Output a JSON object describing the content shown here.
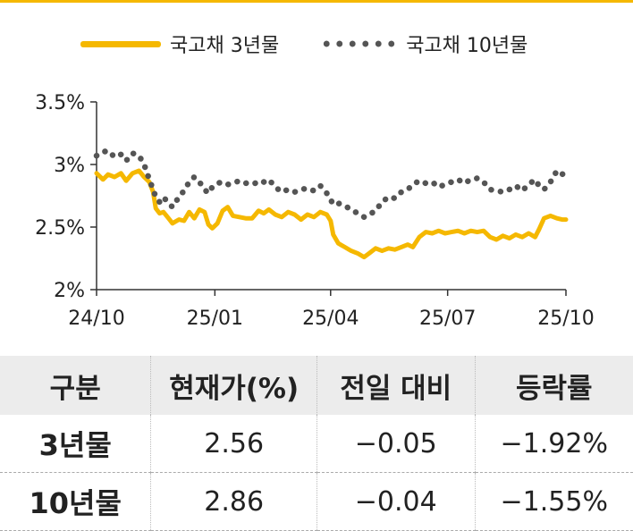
{
  "chart_data": {
    "type": "line",
    "x_ticks": [
      "24/10",
      "25/01",
      "25/04",
      "25/07",
      "25/10"
    ],
    "x_range": [
      "2024-10-01",
      "2025-10-01"
    ],
    "y_ticks": [
      "2%",
      "2.5%",
      "3%",
      "3.5%"
    ],
    "ylim": [
      2.0,
      3.5
    ],
    "legend_position": "top",
    "series": [
      {
        "name": "국고채 3년물",
        "style": "solid",
        "color": "#f5b800",
        "points": [
          [
            "2024-10-01",
            2.93
          ],
          [
            "2024-10-06",
            2.88
          ],
          [
            "2024-10-10",
            2.92
          ],
          [
            "2024-10-15",
            2.9
          ],
          [
            "2024-10-20",
            2.93
          ],
          [
            "2024-10-24",
            2.87
          ],
          [
            "2024-10-29",
            2.93
          ],
          [
            "2024-11-03",
            2.95
          ],
          [
            "2024-11-07",
            2.9
          ],
          [
            "2024-11-11",
            2.86
          ],
          [
            "2024-11-14",
            2.78
          ],
          [
            "2024-11-16",
            2.65
          ],
          [
            "2024-11-19",
            2.61
          ],
          [
            "2024-11-22",
            2.62
          ],
          [
            "2024-11-26",
            2.57
          ],
          [
            "2024-11-29",
            2.53
          ],
          [
            "2024-12-04",
            2.56
          ],
          [
            "2024-12-08",
            2.55
          ],
          [
            "2024-12-12",
            2.62
          ],
          [
            "2024-12-16",
            2.57
          ],
          [
            "2024-12-20",
            2.64
          ],
          [
            "2024-12-24",
            2.62
          ],
          [
            "2024-12-27",
            2.52
          ],
          [
            "2024-12-30",
            2.49
          ],
          [
            "2025-01-03",
            2.53
          ],
          [
            "2025-01-07",
            2.63
          ],
          [
            "2025-01-11",
            2.66
          ],
          [
            "2025-01-15",
            2.59
          ],
          [
            "2025-01-20",
            2.58
          ],
          [
            "2025-01-25",
            2.57
          ],
          [
            "2025-01-30",
            2.57
          ],
          [
            "2025-02-04",
            2.63
          ],
          [
            "2025-02-08",
            2.61
          ],
          [
            "2025-02-12",
            2.64
          ],
          [
            "2025-02-17",
            2.6
          ],
          [
            "2025-02-22",
            2.58
          ],
          [
            "2025-02-27",
            2.62
          ],
          [
            "2025-03-04",
            2.6
          ],
          [
            "2025-03-09",
            2.56
          ],
          [
            "2025-03-14",
            2.6
          ],
          [
            "2025-03-19",
            2.58
          ],
          [
            "2025-03-24",
            2.62
          ],
          [
            "2025-03-29",
            2.6
          ],
          [
            "2025-04-01",
            2.55
          ],
          [
            "2025-04-03",
            2.44
          ],
          [
            "2025-04-07",
            2.37
          ],
          [
            "2025-04-12",
            2.34
          ],
          [
            "2025-04-17",
            2.31
          ],
          [
            "2025-04-22",
            2.29
          ],
          [
            "2025-04-27",
            2.26
          ],
          [
            "2025-05-01",
            2.29
          ],
          [
            "2025-05-06",
            2.33
          ],
          [
            "2025-05-11",
            2.31
          ],
          [
            "2025-05-16",
            2.33
          ],
          [
            "2025-05-21",
            2.32
          ],
          [
            "2025-05-26",
            2.34
          ],
          [
            "2025-05-31",
            2.36
          ],
          [
            "2025-06-04",
            2.34
          ],
          [
            "2025-06-09",
            2.42
          ],
          [
            "2025-06-14",
            2.46
          ],
          [
            "2025-06-19",
            2.45
          ],
          [
            "2025-06-24",
            2.47
          ],
          [
            "2025-06-29",
            2.45
          ],
          [
            "2025-07-04",
            2.46
          ],
          [
            "2025-07-09",
            2.47
          ],
          [
            "2025-07-14",
            2.45
          ],
          [
            "2025-07-19",
            2.47
          ],
          [
            "2025-07-24",
            2.46
          ],
          [
            "2025-07-29",
            2.47
          ],
          [
            "2025-08-03",
            2.42
          ],
          [
            "2025-08-08",
            2.4
          ],
          [
            "2025-08-13",
            2.43
          ],
          [
            "2025-08-18",
            2.41
          ],
          [
            "2025-08-23",
            2.44
          ],
          [
            "2025-08-28",
            2.42
          ],
          [
            "2025-09-02",
            2.45
          ],
          [
            "2025-09-07",
            2.42
          ],
          [
            "2025-09-10",
            2.48
          ],
          [
            "2025-09-14",
            2.57
          ],
          [
            "2025-09-19",
            2.59
          ],
          [
            "2025-09-24",
            2.57
          ],
          [
            "2025-09-28",
            2.56
          ],
          [
            "2025-10-01",
            2.56
          ]
        ]
      },
      {
        "name": "국고채 10년물",
        "style": "dotted",
        "color": "#555555",
        "points": [
          [
            "2024-10-01",
            3.07
          ],
          [
            "2024-10-06",
            3.1
          ],
          [
            "2024-10-10",
            3.11
          ],
          [
            "2024-10-15",
            3.06
          ],
          [
            "2024-10-20",
            3.08
          ],
          [
            "2024-10-24",
            3.03
          ],
          [
            "2024-10-29",
            3.09
          ],
          [
            "2024-11-03",
            3.07
          ],
          [
            "2024-11-07",
            3.0
          ],
          [
            "2024-11-11",
            2.88
          ],
          [
            "2024-11-14",
            2.8
          ],
          [
            "2024-11-16",
            2.74
          ],
          [
            "2024-11-19",
            2.7
          ],
          [
            "2024-11-22",
            2.74
          ],
          [
            "2024-11-26",
            2.69
          ],
          [
            "2024-11-29",
            2.66
          ],
          [
            "2024-12-04",
            2.74
          ],
          [
            "2024-12-08",
            2.79
          ],
          [
            "2024-12-12",
            2.86
          ],
          [
            "2024-12-16",
            2.9
          ],
          [
            "2024-12-20",
            2.86
          ],
          [
            "2024-12-24",
            2.8
          ],
          [
            "2024-12-27",
            2.77
          ],
          [
            "2024-12-30",
            2.82
          ],
          [
            "2025-01-03",
            2.85
          ],
          [
            "2025-01-07",
            2.86
          ],
          [
            "2025-01-11",
            2.84
          ],
          [
            "2025-01-15",
            2.85
          ],
          [
            "2025-01-20",
            2.87
          ],
          [
            "2025-01-25",
            2.85
          ],
          [
            "2025-01-30",
            2.86
          ],
          [
            "2025-02-04",
            2.84
          ],
          [
            "2025-02-08",
            2.86
          ],
          [
            "2025-02-12",
            2.88
          ],
          [
            "2025-02-17",
            2.82
          ],
          [
            "2025-02-22",
            2.78
          ],
          [
            "2025-02-27",
            2.8
          ],
          [
            "2025-03-04",
            2.78
          ],
          [
            "2025-03-09",
            2.8
          ],
          [
            "2025-03-14",
            2.81
          ],
          [
            "2025-03-19",
            2.79
          ],
          [
            "2025-03-24",
            2.83
          ],
          [
            "2025-03-29",
            2.77
          ],
          [
            "2025-04-01",
            2.72
          ],
          [
            "2025-04-03",
            2.68
          ],
          [
            "2025-04-07",
            2.69
          ],
          [
            "2025-04-12",
            2.67
          ],
          [
            "2025-04-17",
            2.64
          ],
          [
            "2025-04-22",
            2.61
          ],
          [
            "2025-04-27",
            2.58
          ],
          [
            "2025-05-01",
            2.6
          ],
          [
            "2025-05-06",
            2.63
          ],
          [
            "2025-05-11",
            2.7
          ],
          [
            "2025-05-16",
            2.74
          ],
          [
            "2025-05-21",
            2.73
          ],
          [
            "2025-05-26",
            2.78
          ],
          [
            "2025-05-31",
            2.8
          ],
          [
            "2025-06-04",
            2.84
          ],
          [
            "2025-06-09",
            2.87
          ],
          [
            "2025-06-14",
            2.85
          ],
          [
            "2025-06-19",
            2.86
          ],
          [
            "2025-06-24",
            2.82
          ],
          [
            "2025-06-29",
            2.84
          ],
          [
            "2025-07-04",
            2.86
          ],
          [
            "2025-07-09",
            2.88
          ],
          [
            "2025-07-14",
            2.85
          ],
          [
            "2025-07-19",
            2.88
          ],
          [
            "2025-07-24",
            2.89
          ],
          [
            "2025-07-29",
            2.86
          ],
          [
            "2025-08-03",
            2.8
          ],
          [
            "2025-08-08",
            2.79
          ],
          [
            "2025-08-13",
            2.78
          ],
          [
            "2025-08-18",
            2.8
          ],
          [
            "2025-08-23",
            2.83
          ],
          [
            "2025-08-28",
            2.79
          ],
          [
            "2025-09-02",
            2.84
          ],
          [
            "2025-09-07",
            2.88
          ],
          [
            "2025-09-10",
            2.83
          ],
          [
            "2025-09-14",
            2.8
          ],
          [
            "2025-09-19",
            2.86
          ],
          [
            "2025-09-24",
            2.95
          ],
          [
            "2025-09-28",
            2.93
          ],
          [
            "2025-10-01",
            2.86
          ]
        ]
      }
    ]
  },
  "table": {
    "headers": [
      "구분",
      "현재가(%)",
      "전일 대비",
      "등락률"
    ],
    "rows": [
      [
        "3년물",
        "2.56",
        "−0.05",
        "−1.92%"
      ],
      [
        "10년물",
        "2.86",
        "−0.04",
        "−1.55%"
      ]
    ]
  }
}
